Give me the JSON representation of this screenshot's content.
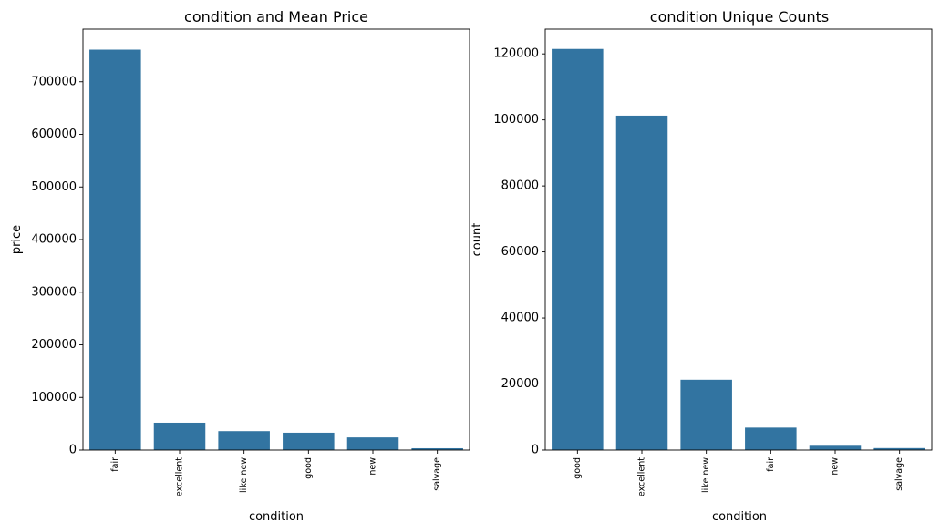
{
  "colors": {
    "bar": "#3274a1",
    "axis": "#000000"
  },
  "chart_data": [
    {
      "type": "bar",
      "title": "condition and Mean Price",
      "xlabel": "condition",
      "ylabel": "price",
      "categories": [
        "fair",
        "excellent",
        "like new",
        "good",
        "new",
        "salvage"
      ],
      "values": [
        761000,
        52000,
        36000,
        33000,
        24000,
        3500
      ],
      "ylim": [
        0,
        800000
      ],
      "yticks": [
        0,
        100000,
        200000,
        300000,
        400000,
        500000,
        600000,
        700000
      ],
      "grid": false
    },
    {
      "type": "bar",
      "title": "condition Unique Counts",
      "xlabel": "condition",
      "ylabel": "count",
      "categories": [
        "good",
        "excellent",
        "like new",
        "fair",
        "new",
        "salvage"
      ],
      "values": [
        121500,
        101300,
        21300,
        6800,
        1300,
        600
      ],
      "ylim": [
        0,
        127500
      ],
      "yticks": [
        0,
        20000,
        40000,
        60000,
        80000,
        100000,
        120000
      ],
      "grid": false
    }
  ]
}
